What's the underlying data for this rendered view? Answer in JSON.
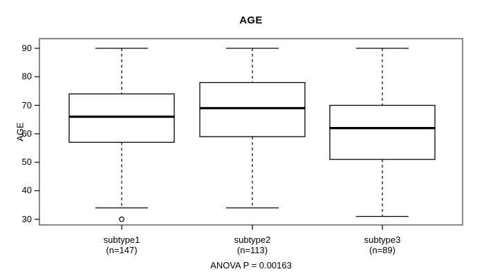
{
  "figure": {
    "title": "AGE",
    "annotation": "ANOVA P = 0.00163"
  },
  "chart_data": {
    "type": "boxplot",
    "title": "AGE",
    "xlabel": "",
    "ylabel": "AGE",
    "ylim": [
      28,
      93.4
    ],
    "yticks": [
      30,
      40,
      50,
      60,
      70,
      80,
      90
    ],
    "grid": false,
    "annotation": "ANOVA P = 0.00163",
    "groups": [
      {
        "label": "subtype1",
        "n_label": "(n=147)",
        "n": 147,
        "whisker_low": 34,
        "q1": 57,
        "median": 66,
        "q3": 74,
        "whisker_high": 90,
        "outliers": [
          30
        ]
      },
      {
        "label": "subtype2",
        "n_label": "(n=113)",
        "n": 113,
        "whisker_low": 34,
        "q1": 59,
        "median": 69,
        "q3": 78,
        "whisker_high": 90,
        "outliers": []
      },
      {
        "label": "subtype3",
        "n_label": "(n=89)",
        "n": 89,
        "whisker_low": 31,
        "q1": 51,
        "median": 62,
        "q3": 70,
        "whisker_high": 90,
        "outliers": []
      }
    ]
  },
  "colors": {
    "frame": "#555555",
    "line": "#000000",
    "median": "#000000",
    "box_fill": "#ffffff",
    "background": "#ffffff",
    "text": "#000000"
  }
}
